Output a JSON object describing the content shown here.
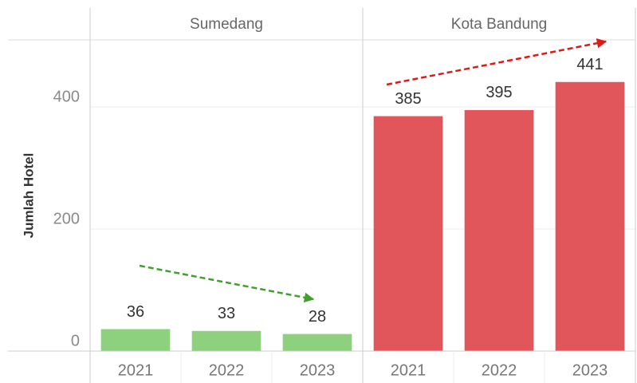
{
  "chart_data": {
    "type": "bar",
    "ylabel": "Jumlah Hotel",
    "ylim": [
      0,
      510
    ],
    "yticks": [
      0,
      200,
      400
    ],
    "grid": true,
    "panels": [
      {
        "name": "Sumedang",
        "color": "#8dd17e",
        "categories": [
          "2021",
          "2022",
          "2023"
        ],
        "values": [
          36,
          33,
          28
        ]
      },
      {
        "name": "Kota Bandung",
        "color": "#e0565b",
        "categories": [
          "2021",
          "2022",
          "2023"
        ],
        "values": [
          385,
          395,
          441
        ]
      }
    ]
  }
}
